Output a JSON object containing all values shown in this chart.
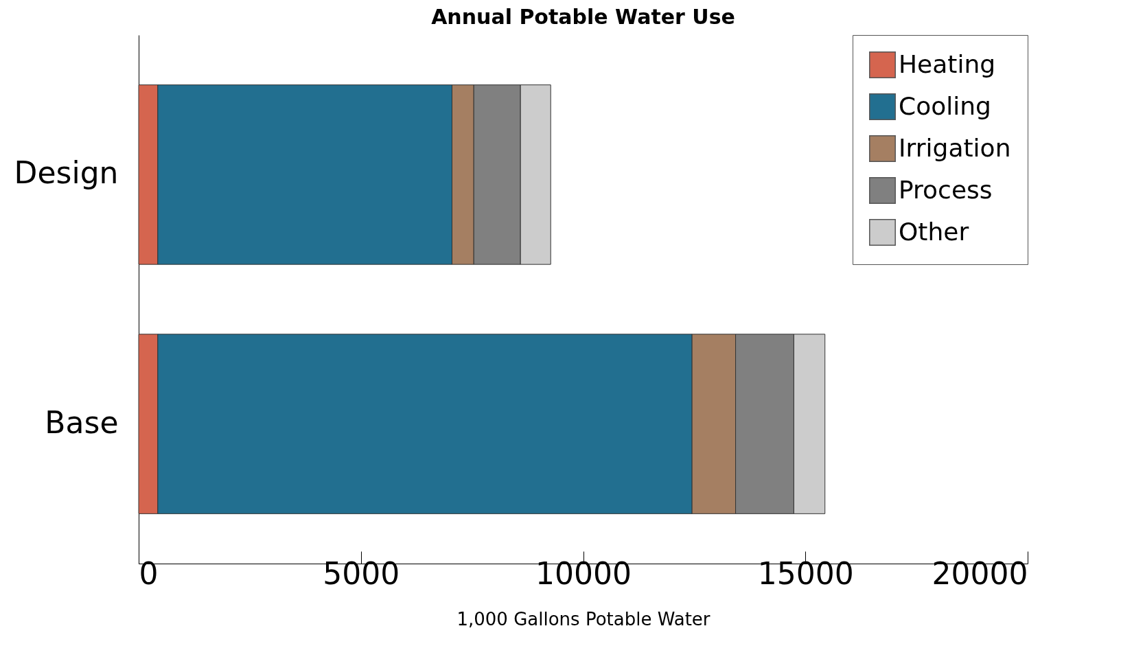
{
  "chart_data": {
    "type": "bar",
    "title": "Annual Potable Water Use",
    "xlabel": "1,000 Gallons Potable Water",
    "orientation": "horizontal",
    "stacked": true,
    "categories": [
      "Design",
      "Base"
    ],
    "series": [
      {
        "name": "Heating",
        "color": "#d5654f",
        "values": [
          430,
          430
        ]
      },
      {
        "name": "Cooling",
        "color": "#226f90",
        "values": [
          6620,
          12020
        ]
      },
      {
        "name": "Irrigation",
        "color": "#a57f62",
        "values": [
          490,
          980
        ]
      },
      {
        "name": "Process",
        "color": "#808080",
        "values": [
          1050,
          1310
        ]
      },
      {
        "name": "Other",
        "color": "#cccccc",
        "values": [
          680,
          700
        ]
      }
    ],
    "xlim": [
      0,
      20000
    ],
    "xticks": [
      0,
      5000,
      10000,
      15000,
      20000
    ],
    "legend": "top right"
  }
}
